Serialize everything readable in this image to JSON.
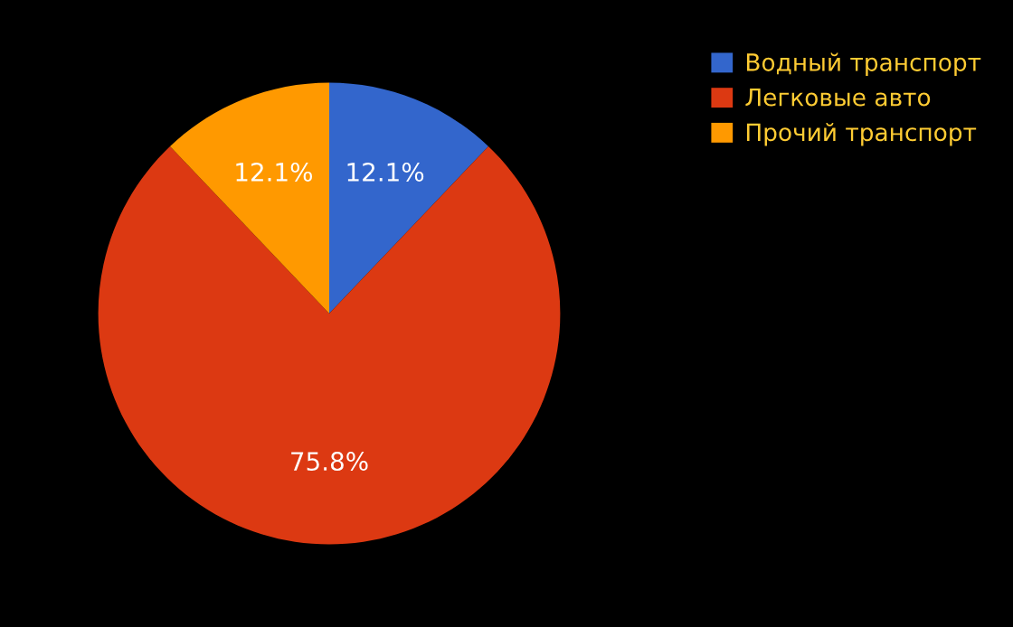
{
  "chart_data": {
    "type": "pie",
    "categories": [
      "Водный транспорт",
      "Легковые авто",
      "Прочий транспорт"
    ],
    "values": [
      12.1,
      75.8,
      12.1
    ],
    "colors": [
      "#3366cc",
      "#dc3912",
      "#ff9900"
    ],
    "value_labels": [
      "12.1%",
      "75.8%",
      "12.1%"
    ],
    "legend": "top right"
  }
}
